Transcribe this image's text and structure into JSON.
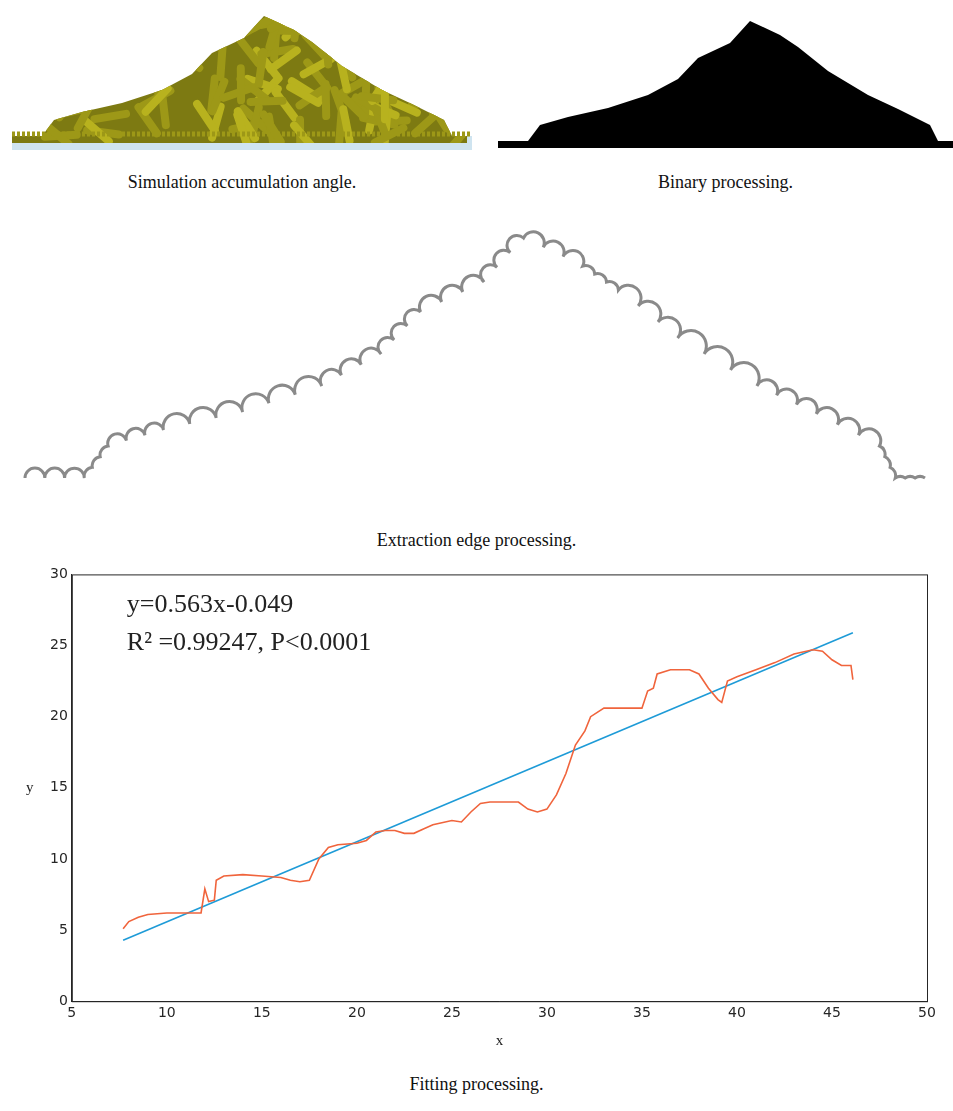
{
  "panels": [
    {
      "caption": "Simulation accumulation angle."
    },
    {
      "caption": "Binary processing."
    },
    {
      "caption": "Extraction edge processing."
    }
  ],
  "chart_data": {
    "type": "line",
    "caption": "Fitting processing.",
    "x_label": "x",
    "y_label": "y",
    "annotations": [
      "y=0.563x-0.049",
      "R² =0.99247, P<0.0001"
    ],
    "xlim": [
      5,
      50
    ],
    "xticks": [
      5,
      10,
      15,
      20,
      25,
      30,
      35,
      40,
      45,
      50
    ],
    "ylim": [
      0,
      30
    ],
    "yticks": [
      0,
      5,
      10,
      15,
      20,
      25,
      30
    ],
    "grid": false,
    "series": [
      {
        "color": "#f0643c",
        "line_style": "solid",
        "x": [
          7.7,
          8,
          8.5,
          9,
          10,
          11,
          11.8,
          12,
          12.2,
          12.5,
          12.6,
          13,
          14,
          15,
          16,
          16.5,
          17,
          17.5,
          18,
          18.5,
          19,
          20,
          20.5,
          21,
          21.5,
          22,
          22.5,
          23,
          23.5,
          24,
          25,
          25.5,
          26,
          26.5,
          27,
          28,
          28.5,
          29,
          29.5,
          30,
          30.5,
          31,
          31.5,
          32,
          32.3,
          33,
          34,
          35,
          35.3,
          35.6,
          35.8,
          36.5,
          37.5,
          38,
          38.5,
          39,
          39.2,
          39.5,
          40,
          41,
          42,
          43,
          44,
          44.5,
          45,
          45.5,
          46,
          46.1
        ],
        "values": [
          5.1,
          5.6,
          5.9,
          6.1,
          6.2,
          6.2,
          6.2,
          7.9,
          7.0,
          7.1,
          8.5,
          8.8,
          8.9,
          8.8,
          8.7,
          8.5,
          8.4,
          8.5,
          10.0,
          10.8,
          11.0,
          11.1,
          11.3,
          11.9,
          12.0,
          12.0,
          11.8,
          11.8,
          12.1,
          12.4,
          12.7,
          12.6,
          13.3,
          13.9,
          14.0,
          14.0,
          14.0,
          13.5,
          13.3,
          13.5,
          14.5,
          16.0,
          18.0,
          19.0,
          20.0,
          20.6,
          20.6,
          20.6,
          21.8,
          22.0,
          23.0,
          23.3,
          23.3,
          23.0,
          22.0,
          21.2,
          21.0,
          22.5,
          22.8,
          23.3,
          23.8,
          24.4,
          24.7,
          24.6,
          24.0,
          23.6,
          23.6,
          22.6
        ]
      },
      {
        "color": "#1e9bd7",
        "line_style": "solid",
        "x": [
          7.7,
          46.1
        ],
        "values": [
          4.29,
          25.9
        ]
      }
    ]
  }
}
